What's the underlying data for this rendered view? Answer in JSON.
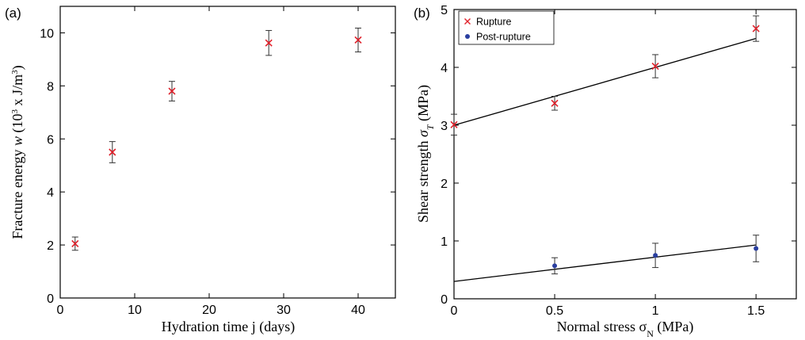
{
  "chart_data": [
    {
      "panel": "(a)",
      "type": "scatter",
      "xlabel": "Hydration time j (days)",
      "ylabel": "Fracture energy w (10³ x J/m³)",
      "ylabel_parts": {
        "pre": "Fracture energy ",
        "var": "w",
        "mid": " (10",
        "sup1": "3",
        "post": " x J/m",
        "sup2": "3",
        "end": ")"
      },
      "xlim": [
        0,
        45
      ],
      "ylim": [
        0,
        11
      ],
      "xticks": [
        0,
        10,
        20,
        30,
        40
      ],
      "yticks": [
        0,
        2,
        4,
        6,
        8,
        10
      ],
      "grid": false,
      "series": [
        {
          "marker": "x",
          "color": "#e0202a",
          "x": [
            2,
            7,
            15,
            28,
            40
          ],
          "y": [
            2.05,
            5.5,
            7.8,
            9.62,
            9.73
          ],
          "yerr": [
            0.25,
            0.4,
            0.37,
            0.47,
            0.45
          ]
        }
      ]
    },
    {
      "panel": "(b)",
      "type": "scatter",
      "xlabel": "Normal stress σN (MPa)",
      "xlabel_parts": {
        "pre": "Normal stress σ",
        "sub": "N",
        "post": " (MPa)"
      },
      "ylabel": "Shear strength σT (MPa)",
      "ylabel_parts": {
        "pre": "Shear strength ",
        "var": "σ",
        "sub": "T",
        "post": " (MPa)"
      },
      "xlim": [
        0,
        1.7
      ],
      "ylim": [
        0,
        5
      ],
      "xticks": [
        0,
        0.5,
        1,
        1.5
      ],
      "xtick_labels": [
        "0",
        "0.5",
        "1",
        "1.5"
      ],
      "yticks": [
        0,
        1,
        2,
        3,
        4,
        5
      ],
      "grid": false,
      "legend_position": "top-left",
      "series": [
        {
          "name": "Rupture",
          "marker": "x",
          "color": "#e0202a",
          "x": [
            0,
            0.5,
            1.0,
            1.5
          ],
          "y": [
            3.01,
            3.38,
            4.02,
            4.67
          ],
          "yerr": [
            0.18,
            0.12,
            0.2,
            0.22
          ],
          "fit": {
            "x": [
              0,
              1.5
            ],
            "y": [
              3.0,
              4.5
            ]
          }
        },
        {
          "name": "Post-rupture",
          "marker": "dot",
          "color": "#2a3fa0",
          "x": [
            0.5,
            1.0,
            1.5
          ],
          "y": [
            0.57,
            0.75,
            0.87
          ],
          "yerr": [
            0.14,
            0.21,
            0.23
          ],
          "fit": {
            "x": [
              0,
              1.5
            ],
            "y": [
              0.3,
              0.93
            ]
          }
        }
      ]
    }
  ]
}
